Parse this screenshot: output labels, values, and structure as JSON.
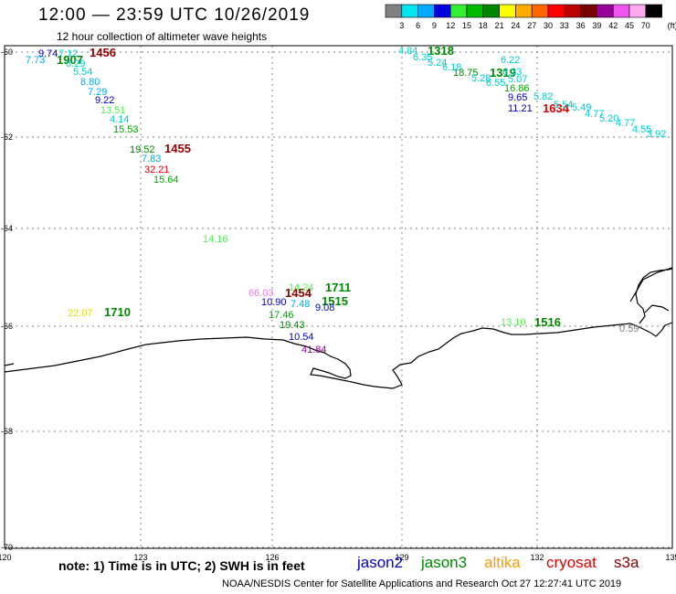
{
  "title": "12:00 — 23:59 UTC 10/26/2019",
  "subtitle": "12 hour collection of altimeter wave heights",
  "colorbar": {
    "unit": "(ft)",
    "labels": [
      "3",
      "6",
      "9",
      "12",
      "15",
      "18",
      "21",
      "24",
      "27",
      "30",
      "33",
      "36",
      "39",
      "42",
      "45",
      "70"
    ],
    "colors": [
      "#808080",
      "#00e5ee",
      "#00aaff",
      "#0000dd",
      "#33ee33",
      "#00bb00",
      "#008800",
      "#ffff00",
      "#ffaa00",
      "#ff6600",
      "#ff0000",
      "#bb0000",
      "#770000",
      "#990099",
      "#ee55ee",
      "#ffaaee",
      "#000000"
    ]
  },
  "axes": {
    "lat_ticks": [
      "-60",
      "-62",
      "-64",
      "-66",
      "-68",
      "-70"
    ],
    "lon_ticks": [
      "120",
      "123",
      "126",
      "129",
      "132",
      "135"
    ]
  },
  "track_labels": [
    {
      "text": "9.74",
      "color": "#0000cc"
    },
    {
      "text": "7.12",
      "color": "#00cccc"
    },
    {
      "text": "7.73",
      "color": "#00aadd"
    },
    {
      "text": "1907",
      "color": "#008800",
      "bold": true
    },
    {
      "text": "6.29",
      "color": "#00cccc"
    },
    {
      "text": "1456",
      "color": "#880000",
      "bold": true
    },
    {
      "text": "5.54",
      "color": "#00cccc"
    },
    {
      "text": "8.80",
      "color": "#00aadd"
    },
    {
      "text": "7.29",
      "color": "#00aadd"
    },
    {
      "text": "9.22",
      "color": "#0000cc"
    },
    {
      "text": "13.51",
      "color": "#55ee55"
    },
    {
      "text": "4.14",
      "color": "#00cccc"
    },
    {
      "text": "15.53",
      "color": "#00aa00"
    },
    {
      "text": "19.52",
      "color": "#008800"
    },
    {
      "text": "1455",
      "color": "#880000",
      "bold": true
    },
    {
      "text": "7.83",
      "color": "#00aadd"
    },
    {
      "text": "32.21",
      "color": "#dd0000"
    },
    {
      "text": "15.64",
      "color": "#00aa00"
    },
    {
      "text": "14.16",
      "color": "#55ee55"
    },
    {
      "text": "4.84",
      "color": "#00cccc"
    },
    {
      "text": "1318",
      "color": "#008800",
      "bold": true
    },
    {
      "text": "6.35",
      "color": "#00cccc"
    },
    {
      "text": "5.24",
      "color": "#00cccc"
    },
    {
      "text": "6.18",
      "color": "#00cccc"
    },
    {
      "text": "18.75",
      "color": "#008800"
    },
    {
      "text": "1319",
      "color": "#008800",
      "bold": true
    },
    {
      "text": "5.28",
      "color": "#00cccc"
    },
    {
      "text": "6.22",
      "color": "#00cccc"
    },
    {
      "text": "6.33",
      "color": "#00cccc"
    },
    {
      "text": "5.07",
      "color": "#00cccc"
    },
    {
      "text": "6.55",
      "color": "#00cccc"
    },
    {
      "text": "16.86",
      "color": "#00aa00"
    },
    {
      "text": "9.65",
      "color": "#0000cc"
    },
    {
      "text": "5.82",
      "color": "#00cccc"
    },
    {
      "text": "11.21",
      "color": "#0000cc"
    },
    {
      "text": "1634",
      "color": "#dd0000",
      "bold": true
    },
    {
      "text": "5.54",
      "color": "#00cccc"
    },
    {
      "text": "5.49",
      "color": "#00cccc"
    },
    {
      "text": "4.77",
      "color": "#00cccc"
    },
    {
      "text": "5.20",
      "color": "#00cccc"
    },
    {
      "text": "4.77",
      "color": "#00cccc"
    },
    {
      "text": "4.55",
      "color": "#00cccc"
    },
    {
      "text": "3.92",
      "color": "#00cccc"
    },
    {
      "text": "66.03",
      "color": "#ee77ee"
    },
    {
      "text": "1454",
      "color": "#880000",
      "bold": true
    },
    {
      "text": "14.24",
      "color": "#55ee55"
    },
    {
      "text": "1711",
      "color": "#008800",
      "bold": true
    },
    {
      "text": "10.90",
      "color": "#0000cc"
    },
    {
      "text": "7.48",
      "color": "#00aadd"
    },
    {
      "text": "1515",
      "color": "#008800",
      "bold": true
    },
    {
      "text": "9.08",
      "color": "#0000cc"
    },
    {
      "text": "17.46",
      "color": "#00aa00"
    },
    {
      "text": "19.43",
      "color": "#008800"
    },
    {
      "text": "10.54",
      "color": "#0000cc"
    },
    {
      "text": "41.84",
      "color": "#990099"
    },
    {
      "text": "22.07",
      "color": "#dddd00"
    },
    {
      "text": "1710",
      "color": "#008800",
      "bold": true
    },
    {
      "text": "13.10",
      "color": "#55ee55"
    },
    {
      "text": "1516",
      "color": "#008800",
      "bold": true
    },
    {
      "text": "0.59",
      "color": "#808080"
    }
  ],
  "footer": {
    "note": "note:  1) Time is in UTC;  2) SWH is in feet",
    "credit": "NOAA/NESDIS Center for Satellite Applications and Research     Oct 27 12:27:41 UTC 2019"
  },
  "satellites": [
    {
      "name": "jason2",
      "color": "#0000cc"
    },
    {
      "name": "jason3",
      "color": "#008800"
    },
    {
      "name": "altika",
      "color": "#ff9900"
    },
    {
      "name": "cryosat",
      "color": "#dd0000"
    },
    {
      "name": "s3a",
      "color": "#880000"
    }
  ]
}
